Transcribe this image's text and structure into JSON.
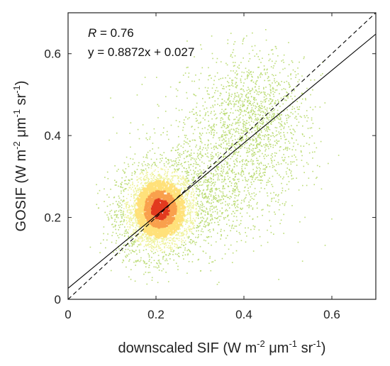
{
  "chart_data": {
    "type": "scatter",
    "xlabel": {
      "pre": "downscaled SIF (W m",
      "sup1": "-2",
      "mid1": " μm",
      "sup2": "-1",
      "mid2": " sr",
      "sup3": "-1",
      "post": ")"
    },
    "ylabel": {
      "pre": "GOSIF (W m",
      "sup1": "-2",
      "mid1": " μm",
      "sup2": "-1",
      "mid2": " sr",
      "sup3": "-1",
      "post": ")"
    },
    "xlim": [
      0,
      0.7
    ],
    "ylim": [
      0,
      0.7
    ],
    "xticks": [
      "0",
      "0.2",
      "0.4",
      "0.6"
    ],
    "yticks": [
      "0",
      "0.2",
      "0.4",
      "0.6"
    ],
    "x_tick_values": [
      0,
      0.2,
      0.4,
      0.6
    ],
    "y_tick_values": [
      0,
      0.2,
      0.4,
      0.6
    ],
    "annotations": {
      "r_symbol": "R",
      "r_value": " = 0.76",
      "equation": "y = 0.8872x + 0.027"
    },
    "regression": {
      "slope": 0.8872,
      "intercept": 0.027,
      "color": "#000000",
      "style": "solid"
    },
    "one_to_one": {
      "slope": 1,
      "intercept": 0,
      "color": "#000000",
      "style": "dashed"
    },
    "density_colors": {
      "low": "#bcdc76",
      "mid_low": "#eef29a",
      "mid": "#ffe17a",
      "mid_high": "#f9a04d",
      "high": "#e23a1f"
    },
    "clusters": [
      {
        "cx": 0.2,
        "cy": 0.21,
        "sx": 0.045,
        "sy": 0.055,
        "count": 2600
      },
      {
        "cx": 0.3,
        "cy": 0.26,
        "sx": 0.07,
        "sy": 0.07,
        "count": 900
      },
      {
        "cx": 0.43,
        "cy": 0.44,
        "sx": 0.06,
        "sy": 0.08,
        "count": 1100
      },
      {
        "cx": 0.37,
        "cy": 0.36,
        "sx": 0.09,
        "sy": 0.11,
        "count": 700
      }
    ],
    "grid": false
  }
}
